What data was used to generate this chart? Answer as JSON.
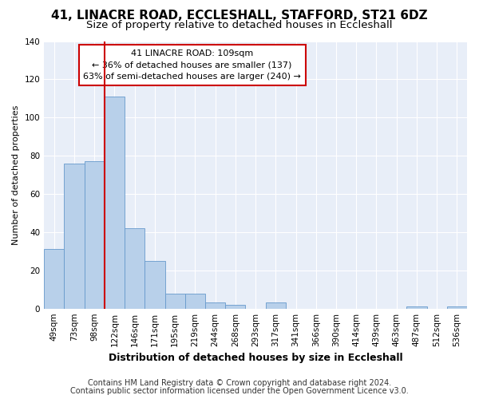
{
  "title1": "41, LINACRE ROAD, ECCLESHALL, STAFFORD, ST21 6DZ",
  "title2": "Size of property relative to detached houses in Eccleshall",
  "xlabel": "Distribution of detached houses by size in Eccleshall",
  "ylabel": "Number of detached properties",
  "footer1": "Contains HM Land Registry data © Crown copyright and database right 2024.",
  "footer2": "Contains public sector information licensed under the Open Government Licence v3.0.",
  "annotation_title": "41 LINACRE ROAD: 109sqm",
  "annotation_line1": "← 36% of detached houses are smaller (137)",
  "annotation_line2": "63% of semi-detached houses are larger (240) →",
  "bar_categories": [
    "49sqm",
    "73sqm",
    "98sqm",
    "122sqm",
    "146sqm",
    "171sqm",
    "195sqm",
    "219sqm",
    "244sqm",
    "268sqm",
    "293sqm",
    "317sqm",
    "341sqm",
    "366sqm",
    "390sqm",
    "414sqm",
    "439sqm",
    "463sqm",
    "487sqm",
    "512sqm",
    "536sqm"
  ],
  "bar_values": [
    31,
    76,
    77,
    111,
    42,
    25,
    8,
    8,
    3,
    2,
    0,
    3,
    0,
    0,
    0,
    0,
    0,
    0,
    1,
    0,
    1
  ],
  "bar_color": "#b8d0ea",
  "bar_edge_color": "#6699cc",
  "vline_x": 2.5,
  "vline_color": "#cc0000",
  "ylim": [
    0,
    140
  ],
  "yticks": [
    0,
    20,
    40,
    60,
    80,
    100,
    120,
    140
  ],
  "bg_color": "#ffffff",
  "axes_bg_color": "#e8eef8",
  "grid_color": "#ffffff",
  "annotation_box_facecolor": "#ffffff",
  "annotation_box_edgecolor": "#cc0000",
  "title1_fontsize": 11,
  "title2_fontsize": 9.5,
  "annotation_fontsize": 8,
  "xlabel_fontsize": 9,
  "ylabel_fontsize": 8,
  "tick_fontsize": 7.5,
  "footer_fontsize": 7
}
